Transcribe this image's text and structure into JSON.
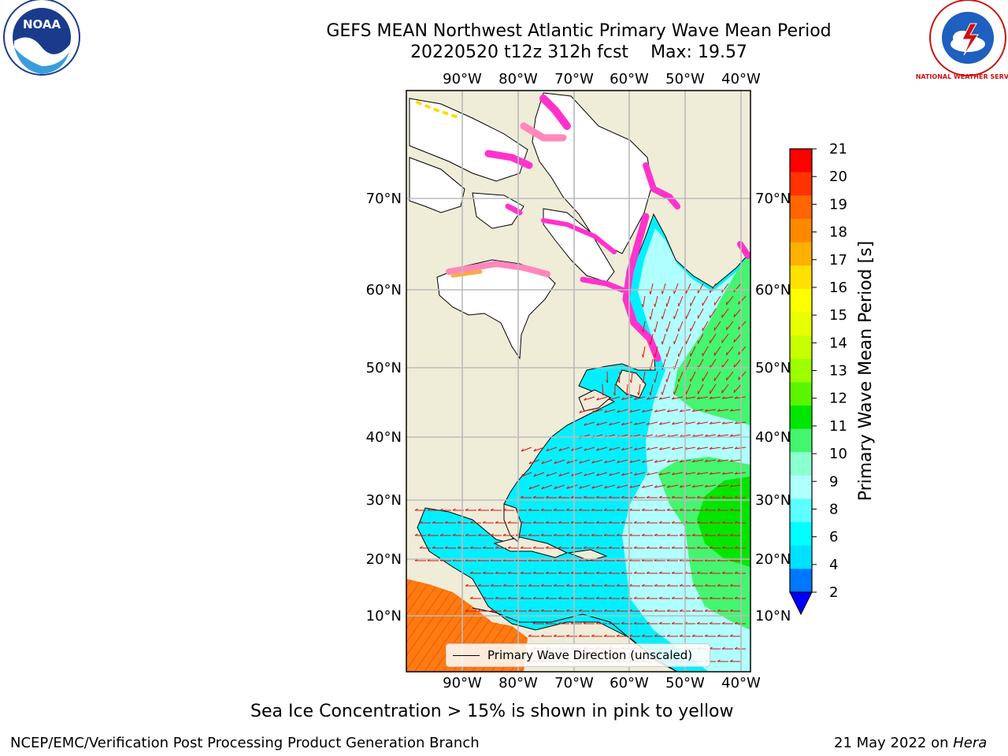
{
  "title": {
    "line1": "GEFS MEAN Northwest Atlantic Primary Wave Mean Period",
    "line2_left": "20220520 t12z 312h fcst",
    "line2_right": "Max: 19.57"
  },
  "logos": {
    "left": "NOAA",
    "right": "NATIONAL WEATHER SERVICE"
  },
  "axes": {
    "lon_labels": [
      "90°W",
      "80°W",
      "70°W",
      "60°W",
      "50°W",
      "40°W"
    ],
    "lat_labels": [
      "70°N",
      "60°N",
      "50°N",
      "40°N",
      "30°N",
      "20°N",
      "10°N"
    ]
  },
  "colorbar": {
    "label": "Primary Wave Mean Period [s]",
    "ticks": [
      "21",
      "20",
      "19",
      "18",
      "17",
      "16",
      "15",
      "14",
      "13",
      "12",
      "11",
      "10",
      "9",
      "8",
      "6",
      "4",
      "2"
    ],
    "colors": [
      "#ff0000",
      "#ff3300",
      "#ff6600",
      "#ff8800",
      "#ffb000",
      "#ffe000",
      "#ffff00",
      "#e8ff00",
      "#c8ff00",
      "#9cff00",
      "#5cf500",
      "#00e600",
      "#44f570",
      "#8cffd0",
      "#b0ffff",
      "#5cffff",
      "#00ffff",
      "#00e0ff",
      "#0077ff"
    ],
    "extend_color": "#0000ff"
  },
  "legend": {
    "label": "Primary Wave Direction (unscaled)"
  },
  "caption": "Sea Ice Concentration > 15% is shown in pink to yellow",
  "footer": {
    "left": "NCEP/EMC/Verification Post Processing Product Generation Branch",
    "date": "21 May 2022 on",
    "host": "Hera"
  },
  "colors": {
    "land": "#efecd8",
    "ice_shelf": "#ffffff",
    "sea_ice": [
      "#ff33cc",
      "#ff88bb",
      "#ffaa44",
      "#ffdd00"
    ],
    "arrow": "#dd1111",
    "grid": "#bbbbbb"
  }
}
